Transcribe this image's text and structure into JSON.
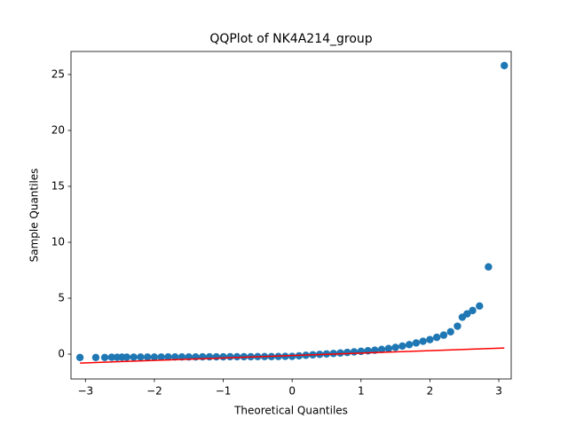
{
  "chart_data": {
    "type": "scatter",
    "title": "QQPlot of NK4A214_group",
    "x_label": "Theoretical Quantiles",
    "y_label": "Sample Quantiles",
    "xlim": [
      -3.21,
      3.18
    ],
    "ylim": [
      -2.22,
      27.06
    ],
    "xticks": [
      {
        "value": -3,
        "label": "−3"
      },
      {
        "value": -2,
        "label": "−2"
      },
      {
        "value": -1,
        "label": "−1"
      },
      0,
      1,
      2,
      3
    ],
    "yticks": [
      0,
      5,
      10,
      15,
      20,
      25
    ],
    "series": [
      {
        "type": "scatter",
        "color": "#1f77b4",
        "x": [
          -3.08,
          -2.85,
          -2.72,
          -2.62,
          -2.54,
          -2.47,
          -2.4,
          -2.3,
          -2.2,
          -2.1,
          -2.0,
          -1.9,
          -1.8,
          -1.7,
          -1.6,
          -1.5,
          -1.4,
          -1.3,
          -1.2,
          -1.1,
          -1.0,
          -0.9,
          -0.8,
          -0.7,
          -0.6,
          -0.5,
          -0.4,
          -0.3,
          -0.2,
          -0.1,
          0,
          0.1,
          0.2,
          0.3,
          0.4,
          0.5,
          0.6,
          0.7,
          0.8,
          0.9,
          1.0,
          1.1,
          1.2,
          1.3,
          1.4,
          1.5,
          1.6,
          1.7,
          1.8,
          1.9,
          2.0,
          2.1,
          2.2,
          2.3,
          2.4,
          2.47,
          2.54,
          2.62,
          2.72,
          2.85,
          3.08
        ],
        "values": [
          -0.3,
          -0.3,
          -0.3,
          -0.28,
          -0.28,
          -0.27,
          -0.27,
          -0.27,
          -0.26,
          -0.26,
          -0.26,
          -0.26,
          -0.25,
          -0.25,
          -0.25,
          -0.25,
          -0.25,
          -0.24,
          -0.24,
          -0.24,
          -0.24,
          -0.23,
          -0.23,
          -0.23,
          -0.23,
          -0.22,
          -0.22,
          -0.22,
          -0.21,
          -0.2,
          -0.2,
          -0.15,
          -0.1,
          -0.06,
          -0.02,
          0.02,
          0.06,
          0.1,
          0.15,
          0.2,
          0.25,
          0.3,
          0.35,
          0.42,
          0.5,
          0.6,
          0.72,
          0.85,
          1.0,
          1.15,
          1.3,
          1.5,
          1.7,
          2.0,
          2.5,
          3.3,
          3.6,
          3.9,
          4.3,
          7.8,
          25.8
        ]
      },
      {
        "type": "line",
        "color": "#ff0000",
        "x": [
          -3.08,
          3.08
        ],
        "values": [
          -0.8,
          0.55
        ]
      }
    ]
  }
}
